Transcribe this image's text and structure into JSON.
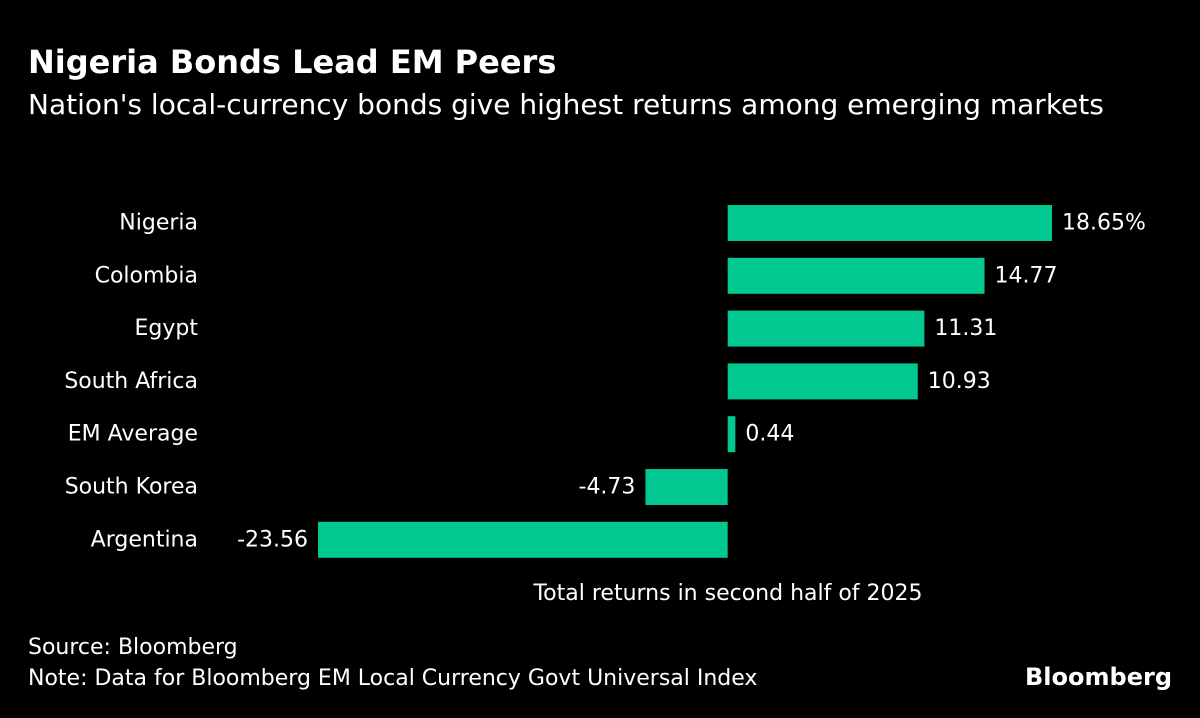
{
  "header": {
    "title": "Nigeria Bonds Lead EM Peers",
    "subtitle": "Nation's local-currency bonds give highest returns among emerging markets"
  },
  "footer": {
    "source": "Source: Bloomberg",
    "note": "Note: Data for Bloomberg EM Local Currency Govt Universal Index",
    "brand": "Bloomberg"
  },
  "colors": {
    "background": "#000000",
    "bar": "#00c890",
    "text": "#ffffff"
  },
  "chart_data": {
    "type": "bar",
    "orientation": "horizontal",
    "title": "Nigeria Bonds Lead EM Peers",
    "subtitle": "Nation's local-currency bonds give highest returns among emerging markets",
    "xlabel": "Total returns in second half of 2025",
    "ylabel": "",
    "unit": "%",
    "categories": [
      "Nigeria",
      "Colombia",
      "Egypt",
      "South Africa",
      "EM Average",
      "South Korea",
      "Argentina"
    ],
    "values": [
      18.65,
      14.77,
      11.31,
      10.93,
      0.44,
      -4.73,
      -23.56
    ],
    "labels": [
      "18.65%",
      "14.77",
      "11.31",
      "10.93",
      "0.44",
      "-4.73",
      "-23.56"
    ],
    "xlim": [
      -23.56,
      18.65
    ],
    "grid": false,
    "legend": "none"
  }
}
